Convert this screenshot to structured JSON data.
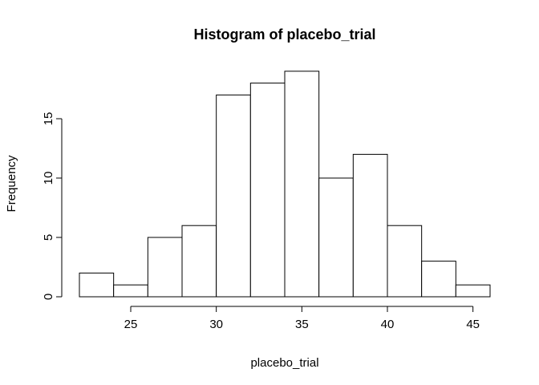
{
  "chart_data": {
    "type": "bar",
    "title": "Histogram of placebo_trial",
    "xlabel": "placebo_trial",
    "ylabel": "Frequency",
    "bins": [
      {
        "start": 22,
        "end": 24,
        "count": 2
      },
      {
        "start": 24,
        "end": 26,
        "count": 1
      },
      {
        "start": 26,
        "end": 28,
        "count": 5
      },
      {
        "start": 28,
        "end": 30,
        "count": 6
      },
      {
        "start": 30,
        "end": 32,
        "count": 17
      },
      {
        "start": 32,
        "end": 34,
        "count": 18
      },
      {
        "start": 34,
        "end": 36,
        "count": 19
      },
      {
        "start": 36,
        "end": 38,
        "count": 10
      },
      {
        "start": 38,
        "end": 40,
        "count": 12
      },
      {
        "start": 40,
        "end": 42,
        "count": 6
      },
      {
        "start": 42,
        "end": 44,
        "count": 3
      },
      {
        "start": 44,
        "end": 46,
        "count": 1
      }
    ],
    "x_ticks": [
      25,
      30,
      35,
      40,
      45
    ],
    "y_ticks": [
      0,
      5,
      10,
      15
    ],
    "xlim": [
      22,
      46
    ],
    "ylim": [
      0,
      19
    ],
    "grid": false,
    "colors": {
      "bar_fill": "#ffffff",
      "bar_stroke": "#000000"
    }
  }
}
